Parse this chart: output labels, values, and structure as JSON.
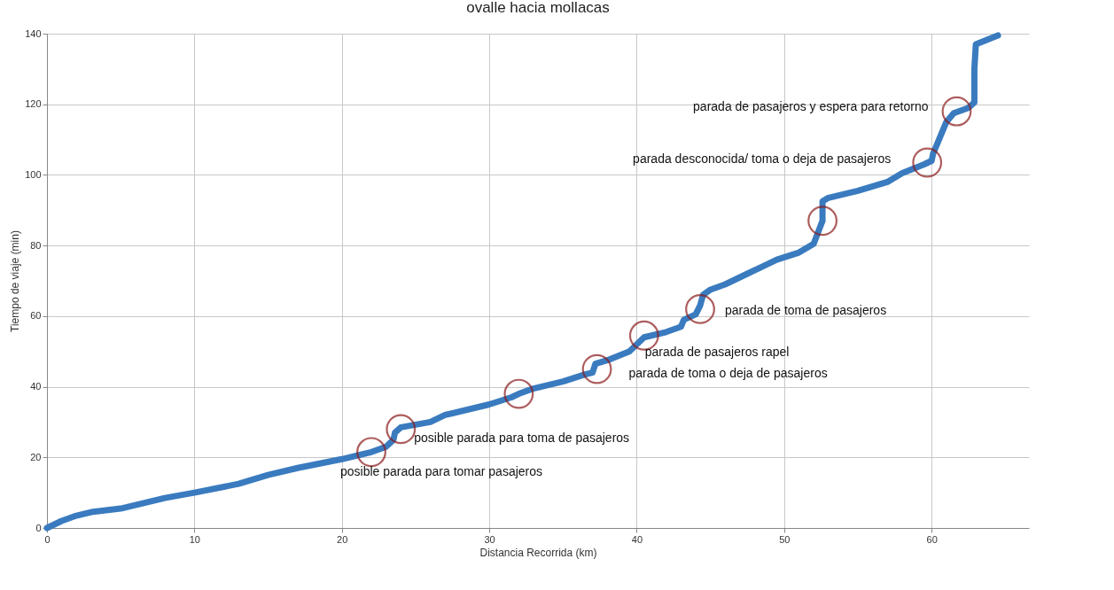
{
  "chart_data": {
    "type": "line",
    "title": "ovalle hacia mollacas",
    "xlabel": "Distancia Recorrida (km)",
    "ylabel": "Tiempo de viaje (min)",
    "xlim": [
      0,
      66.6
    ],
    "xticks": [
      0,
      10,
      20,
      30,
      40,
      50,
      60
    ],
    "ylim": [
      0,
      140
    ],
    "yticks": [
      0,
      20,
      40,
      60,
      80,
      100,
      120,
      140
    ],
    "grid": true,
    "marker": "none",
    "line_style": "solid",
    "series": [
      {
        "color": "#3a7bbf",
        "x": [
          0,
          1,
          2,
          3,
          5,
          8,
          10,
          13,
          15,
          17,
          20,
          22,
          23,
          23.5,
          23.6,
          24,
          26,
          27,
          30,
          31.5,
          32,
          33,
          35,
          36.5,
          37,
          37.2,
          38,
          39.5,
          40,
          40.5,
          42,
          43,
          43.2,
          44,
          44.3,
          44.5,
          45,
          46,
          47,
          47.5,
          48.5,
          49.5,
          51,
          52,
          52.6,
          52.6,
          53,
          55,
          57,
          58,
          59.5,
          60,
          60.1,
          60.5,
          61,
          61.5,
          62.5,
          62.9,
          62.9,
          63,
          64.5
        ],
        "values": [
          0,
          2,
          3.5,
          4.5,
          5.5,
          8.5,
          10,
          12.5,
          15,
          17,
          19.5,
          21.5,
          23,
          25,
          27,
          28.5,
          30,
          32,
          35,
          37,
          38,
          39.5,
          41.5,
          43.5,
          44,
          46.5,
          47.5,
          50,
          52,
          54,
          55.5,
          57,
          59,
          60.5,
          63,
          66,
          67.5,
          69,
          71,
          72,
          74,
          76,
          78,
          80.5,
          87,
          92.5,
          93.5,
          95.5,
          98,
          100.5,
          103,
          104,
          106,
          110,
          115,
          117.5,
          119,
          120.5,
          130,
          137,
          139.5
        ]
      }
    ],
    "annotations": [
      {
        "text": "posible parada para tomar pasajeros",
        "x": 22,
        "y": 21.5
      },
      {
        "text": "posible parada para toma de pasajeros",
        "x": 24,
        "y": 28
      },
      {
        "text": "parada de toma o deja de pasajeros",
        "x": 37.3,
        "y": 45
      },
      {
        "text": "parada de pasajeros rapel",
        "x": 40.5,
        "y": 54.5
      },
      {
        "text": "parada de toma de pasajeros",
        "x": 44.3,
        "y": 62
      },
      {
        "text": "parada desconocida/ toma o deja de pasajeros",
        "x": 59.7,
        "y": 103.5
      },
      {
        "text": "parada de pasajeros y espera para retorno",
        "x": 61.7,
        "y": 118
      }
    ]
  }
}
